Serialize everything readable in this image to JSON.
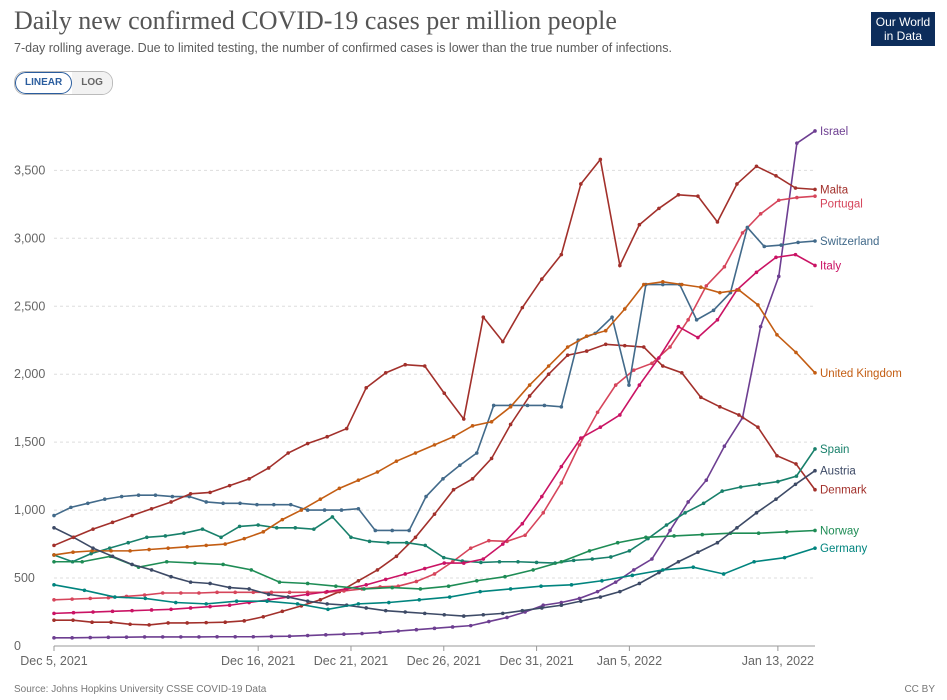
{
  "header": {
    "title": "Daily new confirmed COVID-19 cases per million people",
    "subtitle": "7-day rolling average. Due to limited testing, the number of confirmed cases is lower than the true number of infections.",
    "logo_line1": "Our World",
    "logo_line2": "in Data"
  },
  "controls": {
    "linear_label": "LINEAR",
    "log_label": "LOG",
    "selected": "LINEAR"
  },
  "footer": {
    "source": "Source: Johns Hopkins University CSSE COVID-19 Data",
    "license": "CC BY"
  },
  "chart_data": {
    "type": "line",
    "title": "Daily new confirmed COVID-19 cases per million people",
    "xlabel": "",
    "ylabel": "",
    "ylim": [
      0,
      3900
    ],
    "y_ticks": [
      0,
      500,
      1000,
      1500,
      2000,
      2500,
      3000,
      3500
    ],
    "y_tick_labels": [
      "0",
      "500",
      "1,000",
      "1,500",
      "2,000",
      "2,500",
      "3,000",
      "3,500"
    ],
    "x_start": "2021-12-05",
    "x_end": "2022-01-15",
    "x_tick_labels": [
      "Dec 5, 2021",
      "Dec 16, 2021",
      "Dec 21, 2021",
      "Dec 26, 2021",
      "Dec 31, 2021",
      "Jan 5, 2022",
      "Jan 13, 2022"
    ],
    "x_tick_dates": [
      "2021-12-05",
      "2021-12-16",
      "2021-12-21",
      "2021-12-26",
      "2021-12-31",
      "2022-01-05",
      "2022-01-13"
    ],
    "grid": true,
    "legend_placement": "right (labels at line ends)",
    "series": [
      {
        "name": "Israel",
        "color": "#6d3e91",
        "values": [
          60,
          60,
          62,
          64,
          65,
          67,
          67,
          67,
          67,
          68,
          68,
          68,
          70,
          72,
          77,
          82,
          87,
          92,
          100,
          110,
          120,
          130,
          140,
          150,
          180,
          210,
          250,
          300,
          320,
          350,
          400,
          470,
          560,
          640,
          850,
          1060,
          1220,
          1470,
          1680,
          2350,
          2720,
          3700,
          3790
        ]
      },
      {
        "name": "Denmark",
        "color": "#a2302b",
        "values": [
          190,
          190,
          175,
          175,
          160,
          155,
          170,
          170,
          172,
          175,
          185,
          215,
          255,
          295,
          340,
          400,
          480,
          560,
          660,
          800,
          970,
          1150,
          1230,
          1380,
          1630,
          1840,
          2000,
          2140,
          2170,
          2220,
          2210,
          2200,
          2060,
          2010,
          1830,
          1760,
          1700,
          1610,
          1400,
          1340,
          1150
        ]
      },
      {
        "name": "Portugal",
        "color": "#d6455b",
        "values": [
          340,
          345,
          350,
          355,
          365,
          375,
          390,
          390,
          390,
          395,
          395,
          395,
          395,
          395,
          395,
          395,
          405,
          420,
          435,
          440,
          475,
          530,
          620,
          720,
          775,
          770,
          815,
          980,
          1200,
          1480,
          1720,
          1920,
          2030,
          2080,
          2200,
          2400,
          2650,
          2790,
          3040,
          3180,
          3280,
          3300,
          3310
        ]
      },
      {
        "name": "Spain",
        "color": "#18806b",
        "values": [
          670,
          620,
          680,
          720,
          760,
          800,
          810,
          830,
          860,
          800,
          880,
          890,
          870,
          870,
          860,
          950,
          800,
          770,
          760,
          760,
          740,
          650,
          625,
          615,
          620,
          620,
          615,
          610,
          630,
          640,
          655,
          700,
          790,
          890,
          980,
          1050,
          1140,
          1170,
          1190,
          1210,
          1250,
          1450
        ]
      },
      {
        "name": "Switzerland",
        "color": "#426a8a",
        "values": [
          960,
          1020,
          1050,
          1080,
          1100,
          1110,
          1110,
          1100,
          1100,
          1060,
          1050,
          1050,
          1040,
          1040,
          1040,
          1000,
          1000,
          1000,
          1010,
          850,
          850,
          850,
          1100,
          1230,
          1330,
          1420,
          1770,
          1770,
          1770,
          1770,
          1760,
          2250,
          2300,
          2420,
          1920,
          2660,
          2660,
          2660,
          2400,
          2470,
          2600,
          3080,
          2940,
          2950,
          2970,
          2980
        ]
      },
      {
        "name": "Italy",
        "color": "#ca1364",
        "values": [
          240,
          245,
          250,
          255,
          260,
          265,
          270,
          280,
          290,
          300,
          320,
          340,
          360,
          380,
          400,
          420,
          450,
          490,
          530,
          570,
          610,
          610,
          640,
          750,
          900,
          1100,
          1320,
          1530,
          1610,
          1700,
          1920,
          2120,
          2350,
          2270,
          2400,
          2620,
          2750,
          2860,
          2880,
          2800
        ]
      },
      {
        "name": "United Kingdom",
        "color": "#c35d13",
        "values": [
          670,
          690,
          700,
          700,
          700,
          710,
          720,
          730,
          740,
          750,
          790,
          840,
          930,
          1000,
          1080,
          1160,
          1220,
          1280,
          1360,
          1420,
          1480,
          1540,
          1620,
          1650,
          1760,
          1920,
          2060,
          2200,
          2280,
          2320,
          2480,
          2660,
          2680,
          2660,
          2640,
          2600,
          2620,
          2510,
          2290,
          2160,
          2010
        ]
      },
      {
        "name": "Norway",
        "color": "#1e8c55",
        "values": [
          620,
          620,
          660,
          580,
          620,
          610,
          600,
          560,
          470,
          460,
          440,
          420,
          430,
          420,
          440,
          480,
          510,
          560,
          620,
          700,
          760,
          800,
          810,
          820,
          830,
          830,
          840,
          850
        ]
      },
      {
        "name": "Austria",
        "color": "#3d4a66",
        "values": [
          870,
          800,
          720,
          660,
          600,
          560,
          510,
          470,
          460,
          430,
          420,
          380,
          360,
          330,
          310,
          300,
          280,
          260,
          250,
          240,
          230,
          220,
          230,
          240,
          260,
          280,
          300,
          330,
          360,
          400,
          460,
          540,
          620,
          690,
          760,
          870,
          980,
          1080,
          1190,
          1290
        ]
      },
      {
        "name": "Malta",
        "color": "#a2302b",
        "values": [
          740,
          800,
          860,
          910,
          960,
          1010,
          1060,
          1120,
          1130,
          1180,
          1230,
          1310,
          1420,
          1490,
          1540,
          1600,
          1900,
          2010,
          2070,
          2060,
          1860,
          1670,
          2420,
          2240,
          2490,
          2700,
          2880,
          3400,
          3580,
          2800,
          3100,
          3220,
          3320,
          3310,
          3120,
          3400,
          3530,
          3460,
          3370,
          3360
        ]
      },
      {
        "name": "Germany",
        "color": "#00847e",
        "values": [
          450,
          410,
          360,
          350,
          320,
          310,
          330,
          330,
          310,
          270,
          310,
          320,
          340,
          360,
          400,
          420,
          440,
          450,
          480,
          520,
          560,
          580,
          530,
          620,
          650,
          720
        ]
      }
    ]
  }
}
